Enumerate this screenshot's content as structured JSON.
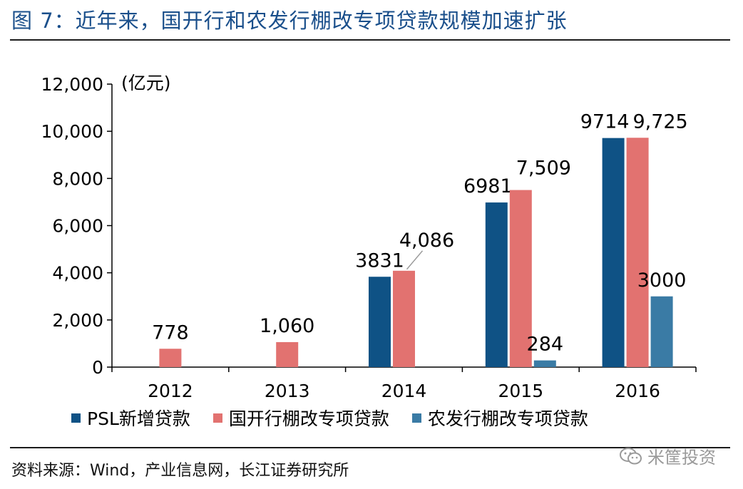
{
  "title": "图 7：近年来，国开行和农发行棚改专项贷款规模加速扩张",
  "source": "资料来源：Wind，产业信息网，长江证券研究所",
  "watermark": {
    "icon": "wechat-icon",
    "text": "米筐投资"
  },
  "colors": {
    "title": "#1a4f8b",
    "psl": "#0f5285",
    "cdb": "#e27270",
    "adbc": "#3a7ba5"
  },
  "chart_data": {
    "type": "bar",
    "unit_label": "(亿元)",
    "categories": [
      "2012",
      "2013",
      "2014",
      "2015",
      "2016"
    ],
    "ylim": [
      0,
      12000
    ],
    "yticks": [
      0,
      2000,
      4000,
      6000,
      8000,
      10000,
      12000
    ],
    "ytick_labels": [
      "0",
      "2,000",
      "4,000",
      "6,000",
      "8,000",
      "10,000",
      "12,000"
    ],
    "grid": false,
    "legend_position": "bottom",
    "series": [
      {
        "name": "PSL新增贷款",
        "color": "#0f5285",
        "values": [
          null,
          null,
          3831,
          6981,
          9714
        ],
        "labels": [
          "",
          "",
          "3831",
          "6981",
          "9714"
        ]
      },
      {
        "name": "国开行棚改专项贷款",
        "color": "#e27270",
        "values": [
          778,
          1060,
          4086,
          7509,
          9725
        ],
        "labels": [
          "778",
          "1,060",
          "4,086",
          "7,509",
          "9,725"
        ]
      },
      {
        "name": "农发行棚改专项贷款",
        "color": "#3a7ba5",
        "values": [
          null,
          null,
          null,
          284,
          3000
        ],
        "labels": [
          "",
          "",
          "",
          "284",
          "3000"
        ]
      }
    ]
  }
}
